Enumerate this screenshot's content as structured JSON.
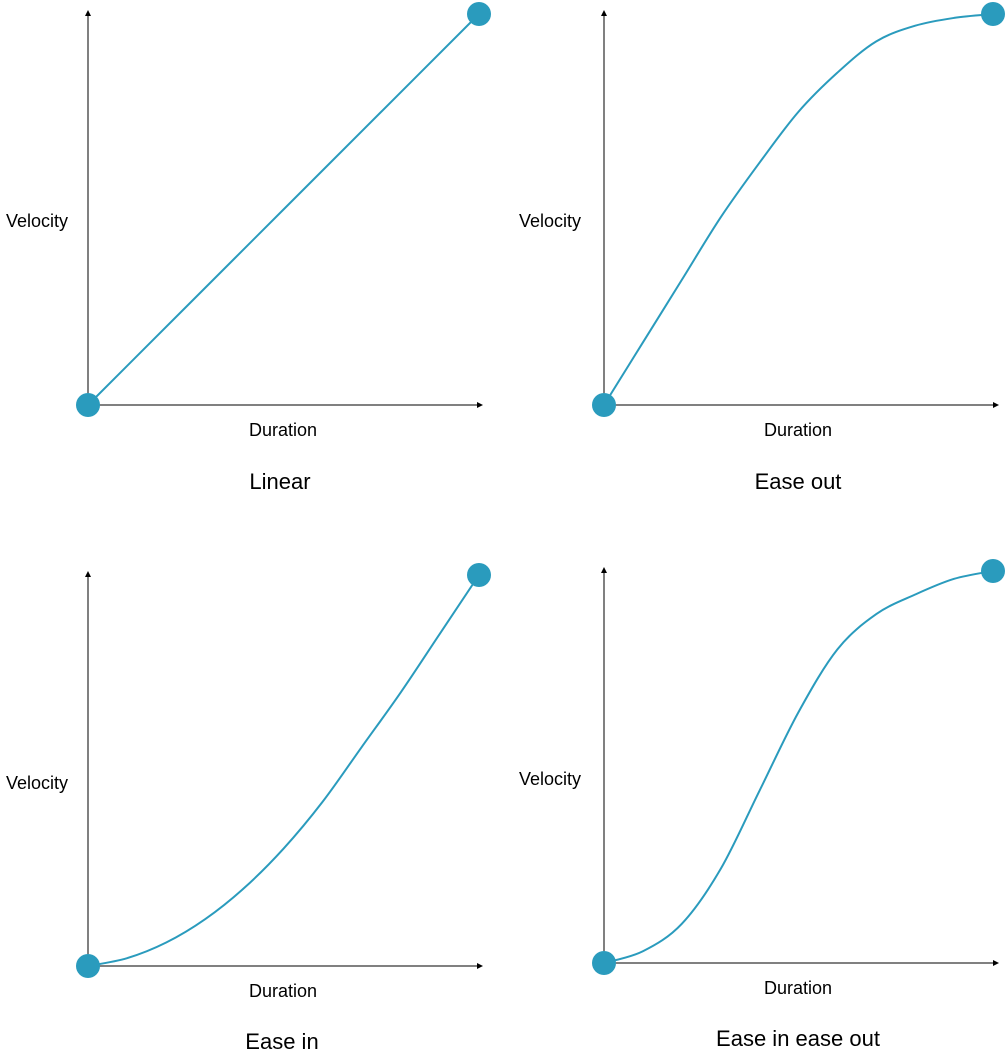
{
  "colors": {
    "curve": "#2a9bbd",
    "point": "#2a9bbd",
    "axis": "#000000"
  },
  "chart_data": [
    {
      "type": "line",
      "title": "Linear",
      "xlabel": "Duration",
      "ylabel": "Velocity",
      "x": [
        0,
        0.25,
        0.5,
        0.75,
        1
      ],
      "series": [
        {
          "values": [
            0,
            0.25,
            0.5,
            0.75,
            1
          ]
        }
      ],
      "xlim": [
        0,
        1
      ],
      "ylim": [
        0,
        1
      ],
      "grid": false,
      "endpoints": [
        [
          0,
          0
        ],
        [
          1,
          1
        ]
      ]
    },
    {
      "type": "line",
      "title": "Ease out",
      "xlabel": "Duration",
      "ylabel": "Velocity",
      "x": [
        0,
        0.1,
        0.2,
        0.3,
        0.4,
        0.5,
        0.6,
        0.7,
        0.8,
        0.9,
        1
      ],
      "series": [
        {
          "values": [
            0,
            0.16,
            0.32,
            0.48,
            0.62,
            0.75,
            0.85,
            0.93,
            0.97,
            0.99,
            1
          ]
        }
      ],
      "xlim": [
        0,
        1
      ],
      "ylim": [
        0,
        1
      ],
      "grid": false,
      "endpoints": [
        [
          0,
          0
        ],
        [
          1,
          1
        ]
      ]
    },
    {
      "type": "line",
      "title": "Ease in",
      "xlabel": "Duration",
      "ylabel": "Velocity",
      "x": [
        0,
        0.1,
        0.2,
        0.3,
        0.4,
        0.5,
        0.6,
        0.7,
        0.8,
        0.9,
        1
      ],
      "series": [
        {
          "values": [
            0,
            0.02,
            0.06,
            0.12,
            0.2,
            0.3,
            0.42,
            0.56,
            0.7,
            0.85,
            1
          ]
        }
      ],
      "xlim": [
        0,
        1
      ],
      "ylim": [
        0,
        1
      ],
      "grid": false,
      "endpoints": [
        [
          0,
          0
        ],
        [
          1,
          1
        ]
      ]
    },
    {
      "type": "line",
      "title": "Ease in ease out",
      "xlabel": "Duration",
      "ylabel": "Velocity",
      "x": [
        0,
        0.1,
        0.2,
        0.3,
        0.4,
        0.5,
        0.6,
        0.7,
        0.8,
        0.9,
        1
      ],
      "series": [
        {
          "values": [
            0,
            0.03,
            0.1,
            0.24,
            0.44,
            0.64,
            0.8,
            0.89,
            0.94,
            0.98,
            1
          ]
        }
      ],
      "xlim": [
        0,
        1
      ],
      "ylim": [
        0,
        1
      ],
      "grid": false,
      "endpoints": [
        [
          0,
          0
        ],
        [
          1,
          1
        ]
      ]
    }
  ]
}
